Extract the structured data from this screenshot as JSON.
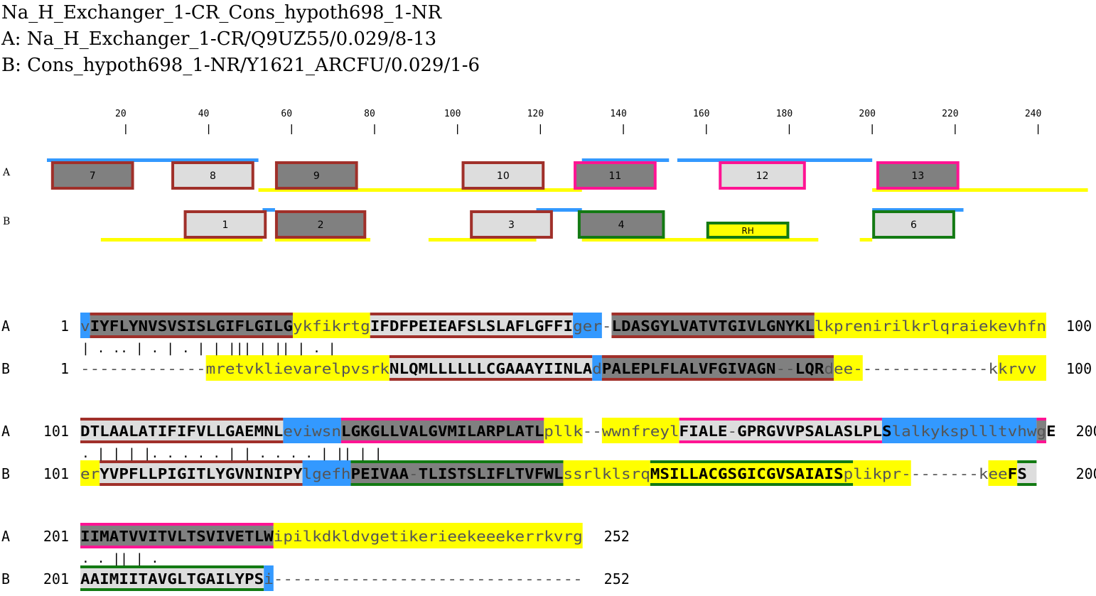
{
  "header": {
    "title": "Na_H_Exchanger_1-CR_Cons_hypoth698_1-NR",
    "lineA": "A: Na_H_Exchanger_1-CR/Q9UZ55/0.029/8-13",
    "lineB": "B: Cons_hypoth698_1-NR/Y1621_ARCFU/0.029/1-6"
  },
  "ruler": {
    "ticks": [
      20,
      40,
      60,
      80,
      100,
      120,
      140,
      160,
      180,
      200,
      220,
      240
    ]
  },
  "colors": {
    "yellow": "#ffff00",
    "blue": "#3399ff",
    "dark_box": "#808080",
    "light_box": "#dddddd",
    "brown": "#a0302a",
    "pink": "#ff1493",
    "green": "#137a13"
  },
  "track_labels": {
    "a": "A",
    "b": "B"
  },
  "tracks": {
    "A": {
      "label": "A",
      "lines": [
        {
          "from": 1,
          "to": 52,
          "color": "blue"
        },
        {
          "from": 52,
          "to": 130,
          "color": "yellow"
        },
        {
          "from": 130,
          "to": 200,
          "color": "blue"
        },
        {
          "from": 200,
          "to": 252,
          "color": "yellow"
        }
      ],
      "gaps": [
        {
          "from": 151,
          "to": 153
        }
      ],
      "boxes": [
        {
          "label": "7",
          "start": 2,
          "end": 22,
          "fill": "dark_box",
          "border": "brown"
        },
        {
          "label": "8",
          "start": 31,
          "end": 51,
          "fill": "light_box",
          "border": "brown"
        },
        {
          "label": "9",
          "start": 56,
          "end": 76,
          "fill": "dark_box",
          "border": "brown"
        },
        {
          "label": "10",
          "start": 101,
          "end": 121,
          "fill": "light_box",
          "border": "brown"
        },
        {
          "label": "11",
          "start": 128,
          "end": 148,
          "fill": "dark_box",
          "border": "pink"
        },
        {
          "label": "12",
          "start": 163,
          "end": 184,
          "fill": "light_box",
          "border": "pink"
        },
        {
          "label": "13",
          "start": 201,
          "end": 221,
          "fill": "dark_box",
          "border": "pink"
        }
      ]
    },
    "B": {
      "label": "B",
      "lines": [
        {
          "from": 14,
          "to": 53,
          "color": "yellow"
        },
        {
          "from": 53,
          "to": 56,
          "color": "blue"
        },
        {
          "from": 56,
          "to": 79,
          "color": "yellow"
        },
        {
          "from": 93,
          "to": 119,
          "color": "yellow"
        },
        {
          "from": 119,
          "to": 130,
          "color": "blue"
        },
        {
          "from": 130,
          "to": 200,
          "color": "yellow"
        },
        {
          "from": 200,
          "to": 222,
          "color": "blue"
        }
      ],
      "gaps": [
        {
          "from": 79,
          "to": 93
        },
        {
          "from": 187,
          "to": 197
        }
      ],
      "boxes": [
        {
          "label": "1",
          "start": 34,
          "end": 54,
          "fill": "light_box",
          "border": "brown"
        },
        {
          "label": "2",
          "start": 56,
          "end": 78,
          "fill": "dark_box",
          "border": "brown"
        },
        {
          "label": "3",
          "start": 103,
          "end": 123,
          "fill": "light_box",
          "border": "brown"
        },
        {
          "label": "4",
          "start": 129,
          "end": 150,
          "fill": "dark_box",
          "border": "green"
        },
        {
          "label": "RH",
          "start": 160,
          "end": 180,
          "fill": "yellow",
          "border": "green",
          "small": true
        },
        {
          "label": "6",
          "start": 200,
          "end": 220,
          "fill": "light_box",
          "border": "green"
        }
      ]
    }
  },
  "alignment": [
    {
      "start_a": "1",
      "end_a": "100",
      "start_b": "1",
      "end_b": "100",
      "seq_a": "vIYFLYNVSVSISLGIFLGILGykfikrtgIFDFPEIEAFSLSLAFLGFFIger-LDASGYLVATVTGIVLGNYKLlkprenirilkrlqraiekevhfn",
      "seq_b": "-------------mretvklievarelpvsrkNLQMLLLLLLCGAAAYIINLAdPALEPLFLALVFGIVAGN--LQRdee--------------kkrvv",
      "match": "                       |         .   ..     |        .  |                    . | | ||| | ||  | .  |                 .    ",
      "regions_a": [
        {
          "from": 0,
          "to": 1,
          "color": "blue"
        },
        {
          "from": 1,
          "to": 22,
          "color": "dark_box",
          "bar": "brown"
        },
        {
          "from": 22,
          "to": 30,
          "color": "yellow"
        },
        {
          "from": 30,
          "to": 51,
          "color": "light_box",
          "bar": "brown"
        },
        {
          "from": 51,
          "to": 54,
          "color": "blue"
        },
        {
          "from": 55,
          "to": 76,
          "color": "dark_box",
          "bar": "brown"
        },
        {
          "from": 76,
          "to": 100,
          "color": "yellow"
        }
      ],
      "regions_b": [
        {
          "from": 13,
          "to": 32,
          "color": "yellow"
        },
        {
          "from": 32,
          "to": 53,
          "color": "light_box",
          "bar": "brown"
        },
        {
          "from": 53,
          "to": 54,
          "color": "blue"
        },
        {
          "from": 54,
          "to": 78,
          "color": "dark_box",
          "bar": "brown"
        },
        {
          "from": 78,
          "to": 81,
          "color": "yellow"
        },
        {
          "from": 95,
          "to": 100,
          "color": "yellow"
        }
      ]
    },
    {
      "start_a": "101",
      "end_a": "200",
      "start_b": "101",
      "end_b": "200",
      "seq_a": "DTLAALATIFIFVLLGAEMNLeviwsnLGKGLLVALGVMILARPLATLpllk--wwnfreylFIALE-GPRGVVPSALASLPLSlalkykspllltvhwgE",
      "seq_b": "erYVPFLLPIGITLYGVNINIPYlgefhPEIVAA-TLISTSLIFLTVFWLssrlklsrqMSILLACGSGICGVSAIAISplikpr--------keeFS",
      "match": ".          | |    | |.  .      .   .    .           |     |            .  .  .  .      |  ||    |  |   .            ",
      "regions_a": [
        {
          "from": 0,
          "to": 21,
          "color": "light_box",
          "bar": "brown"
        },
        {
          "from": 21,
          "to": 27,
          "color": "blue"
        },
        {
          "from": 27,
          "to": 48,
          "color": "dark_box",
          "bar": "pink"
        },
        {
          "from": 48,
          "to": 52,
          "color": "yellow"
        },
        {
          "from": 54,
          "to": 62,
          "color": "yellow"
        },
        {
          "from": 62,
          "to": 83,
          "color": "light_box",
          "bar": "pink"
        },
        {
          "from": 83,
          "to": 99,
          "color": "blue"
        },
        {
          "from": 99,
          "to": 100,
          "color": "dark_box",
          "bar": "pink"
        }
      ],
      "regions_b": [
        {
          "from": 0,
          "to": 2,
          "color": "yellow"
        },
        {
          "from": 2,
          "to": 23,
          "color": "light_box",
          "bar": "brown"
        },
        {
          "from": 23,
          "to": 28,
          "color": "blue"
        },
        {
          "from": 28,
          "to": 50,
          "color": "dark_box",
          "bar": "green"
        },
        {
          "from": 50,
          "to": 59,
          "color": "yellow"
        },
        {
          "from": 59,
          "to": 80,
          "color": "yellow",
          "bar": "green"
        },
        {
          "from": 80,
          "to": 86,
          "color": "yellow"
        },
        {
          "from": 94,
          "to": 97,
          "color": "yellow"
        },
        {
          "from": 97,
          "to": 99,
          "color": "light_box",
          "bar": "green"
        }
      ]
    },
    {
      "start_a": "201",
      "end_a": "252",
      "start_b": "201",
      "end_b": "252",
      "seq_a": "IIMATVVITVLTSVIVETLWipilkdkldvgetikerieekeeekerrkvrg",
      "seq_b": "AAIMIITAVGLTGAILYPSi--------------------------------",
      "match": "  .  .     ||   | .                                  ",
      "regions_a": [
        {
          "from": 0,
          "to": 20,
          "color": "dark_box",
          "bar": "pink"
        },
        {
          "from": 20,
          "to": 52,
          "color": "yellow"
        }
      ],
      "regions_b": [
        {
          "from": 0,
          "to": 19,
          "color": "light_box",
          "bar": "green"
        },
        {
          "from": 19,
          "to": 20,
          "color": "blue"
        }
      ]
    }
  ]
}
